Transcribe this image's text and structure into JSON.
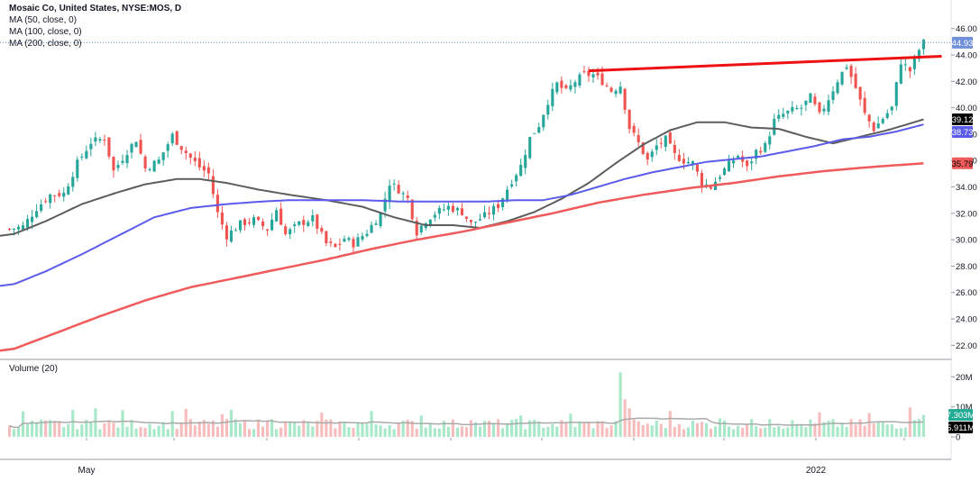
{
  "header": {
    "title": "Mosaic Co, United States, NYSE:MOS, D",
    "ma_labels": [
      "MA (50, close, 0)",
      "MA (100, close, 0)",
      "MA (200, close, 0)"
    ],
    "volume_label": "Volume (20)"
  },
  "colors": {
    "up": "#26a69a",
    "down": "#ef5350",
    "ma50": "#5d5d5d",
    "ma100": "#5b5bec",
    "ma200": "#f05a5a",
    "trendline": "#ee1111",
    "vol_up": "#a6e8c7",
    "vol_down": "#f7bcbc",
    "vol_ma": "#aaaaaa",
    "price_line": "#6f8fd8"
  },
  "chart_data": [
    {
      "type": "candlestick",
      "panel": "price",
      "symbol": "MOS",
      "exchange": "NYSE",
      "interval": "D",
      "ylim": [
        21.0,
        46.8
      ],
      "yticks": [
        "46.00",
        "44.00",
        "42.00",
        "40.00",
        "38.00",
        "36.00",
        "34.00",
        "32.00",
        "30.00",
        "28.00",
        "26.00",
        "24.00",
        "22.00"
      ],
      "x_labels": [
        "May",
        "2022"
      ],
      "last_price": "44.93",
      "badges": [
        {
          "series": "last_price",
          "value": "44.93"
        },
        {
          "series": "MA (50, close, 0)",
          "value": "39.12"
        },
        {
          "series": "MA (100, close, 0)",
          "value": "38.73"
        },
        {
          "series": "MA (200, close, 0)",
          "value": "35.79"
        }
      ],
      "close_path": [
        [
          0,
          30.8
        ],
        [
          3,
          31.0
        ],
        [
          6,
          32.4
        ],
        [
          9,
          33.4
        ],
        [
          12,
          33.5
        ],
        [
          15,
          35.8
        ],
        [
          18,
          37.4
        ],
        [
          21,
          37.7
        ],
        [
          23,
          35.2
        ],
        [
          26,
          36.7
        ],
        [
          28,
          37.6
        ],
        [
          30,
          35.4
        ],
        [
          33,
          36.0
        ],
        [
          36,
          37.9
        ],
        [
          38,
          37.0
        ],
        [
          40,
          36.2
        ],
        [
          42,
          35.5
        ],
        [
          44,
          35.0
        ],
        [
          46,
          32.0
        ],
        [
          48,
          30.3
        ],
        [
          51,
          31.2
        ],
        [
          54,
          31.5
        ],
        [
          57,
          30.8
        ],
        [
          59,
          32.3
        ],
        [
          61,
          30.4
        ],
        [
          64,
          31.2
        ],
        [
          67,
          31.6
        ],
        [
          70,
          29.7
        ],
        [
          72,
          29.4
        ],
        [
          74,
          30.1
        ],
        [
          76,
          29.7
        ],
        [
          79,
          30.6
        ],
        [
          82,
          32.0
        ],
        [
          84,
          34.3
        ],
        [
          86,
          33.8
        ],
        [
          88,
          33.1
        ],
        [
          90,
          30.6
        ],
        [
          92,
          31.5
        ],
        [
          94,
          32.0
        ],
        [
          97,
          32.5
        ],
        [
          100,
          32.1
        ],
        [
          102,
          31.2
        ],
        [
          105,
          31.8
        ],
        [
          108,
          32.6
        ],
        [
          111,
          34.5
        ],
        [
          113,
          35.6
        ],
        [
          115,
          37.7
        ],
        [
          117,
          38.7
        ],
        [
          119,
          40.5
        ],
        [
          121,
          41.8
        ],
        [
          123,
          41.2
        ],
        [
          125,
          42.0
        ],
        [
          127,
          42.5
        ],
        [
          129,
          42.5
        ],
        [
          131,
          42.0
        ],
        [
          133,
          41.3
        ],
        [
          135,
          41.7
        ],
        [
          137,
          38.5
        ],
        [
          139,
          37.3
        ],
        [
          141,
          36.0
        ],
        [
          143,
          37.1
        ],
        [
          145,
          37.6
        ],
        [
          147,
          36.4
        ],
        [
          149,
          36.0
        ],
        [
          151,
          35.8
        ],
        [
          153,
          34.3
        ],
        [
          155,
          34.0
        ],
        [
          157,
          34.9
        ],
        [
          159,
          35.7
        ],
        [
          161,
          36.4
        ],
        [
          163,
          35.4
        ],
        [
          165,
          36.7
        ],
        [
          167,
          37.1
        ],
        [
          169,
          39.0
        ],
        [
          171,
          39.5
        ],
        [
          173,
          39.8
        ],
        [
          175,
          40.0
        ],
        [
          177,
          40.8
        ],
        [
          179,
          39.4
        ],
        [
          181,
          40.7
        ],
        [
          183,
          42.1
        ],
        [
          185,
          43.2
        ],
        [
          187,
          41.5
        ],
        [
          189,
          39.5
        ],
        [
          191,
          38.4
        ],
        [
          193,
          39.2
        ],
        [
          195,
          40.0
        ],
        [
          197,
          43.5
        ],
        [
          199,
          42.8
        ],
        [
          201,
          44.4
        ],
        [
          202,
          44.93
        ]
      ],
      "overlays": [
        {
          "name": "MA (50, close, 0)",
          "path": [
            [
              0,
              30.3
            ],
            [
              8,
              31.4
            ],
            [
              16,
              32.7
            ],
            [
              24,
              33.6
            ],
            [
              30,
              34.2
            ],
            [
              37,
              34.6
            ],
            [
              42,
              34.6
            ],
            [
              48,
              34.3
            ],
            [
              55,
              33.8
            ],
            [
              62,
              33.4
            ],
            [
              70,
              33.0
            ],
            [
              78,
              32.5
            ],
            [
              85,
              31.7
            ],
            [
              92,
              31.1
            ],
            [
              98,
              31.1
            ],
            [
              104,
              30.9
            ],
            [
              110,
              31.4
            ],
            [
              116,
              32.1
            ],
            [
              122,
              33.1
            ],
            [
              128,
              34.3
            ],
            [
              134,
              35.8
            ],
            [
              140,
              37.2
            ],
            [
              146,
              38.3
            ],
            [
              152,
              38.9
            ],
            [
              158,
              38.9
            ],
            [
              164,
              38.5
            ],
            [
              170,
              38.4
            ],
            [
              176,
              37.8
            ],
            [
              182,
              37.3
            ],
            [
              188,
              37.8
            ],
            [
              194,
              38.3
            ],
            [
              198,
              38.7
            ],
            [
              202,
              39.12
            ]
          ]
        },
        {
          "name": "MA (100, close, 0)",
          "path": [
            [
              0,
              26.5
            ],
            [
              8,
              27.6
            ],
            [
              16,
              28.9
            ],
            [
              24,
              30.3
            ],
            [
              32,
              31.7
            ],
            [
              40,
              32.4
            ],
            [
              48,
              32.7
            ],
            [
              56,
              32.9
            ],
            [
              62,
              33.0
            ],
            [
              70,
              33.0
            ],
            [
              78,
              33.0
            ],
            [
              86,
              32.9
            ],
            [
              94,
              32.9
            ],
            [
              100,
              32.9
            ],
            [
              106,
              32.9
            ],
            [
              112,
              33.0
            ],
            [
              118,
              33.0
            ],
            [
              124,
              33.4
            ],
            [
              130,
              34.0
            ],
            [
              136,
              34.6
            ],
            [
              142,
              35.1
            ],
            [
              148,
              35.5
            ],
            [
              154,
              35.9
            ],
            [
              160,
              36.1
            ],
            [
              166,
              36.3
            ],
            [
              172,
              36.7
            ],
            [
              178,
              37.1
            ],
            [
              184,
              37.6
            ],
            [
              190,
              37.8
            ],
            [
              196,
              38.2
            ],
            [
              202,
              38.73
            ]
          ]
        },
        {
          "name": "MA (200, close, 0)",
          "path": [
            [
              0,
              21.6
            ],
            [
              10,
              22.9
            ],
            [
              20,
              24.2
            ],
            [
              30,
              25.4
            ],
            [
              40,
              26.4
            ],
            [
              50,
              27.1
            ],
            [
              60,
              27.8
            ],
            [
              70,
              28.5
            ],
            [
              80,
              29.3
            ],
            [
              90,
              30.0
            ],
            [
              100,
              30.6
            ],
            [
              110,
              31.3
            ],
            [
              120,
              32.0
            ],
            [
              130,
              32.8
            ],
            [
              140,
              33.4
            ],
            [
              150,
              33.9
            ],
            [
              160,
              34.3
            ],
            [
              170,
              34.8
            ],
            [
              180,
              35.2
            ],
            [
              190,
              35.5
            ],
            [
              202,
              35.79
            ]
          ]
        },
        {
          "name": "trendline",
          "path": [
            [
              128,
              42.8
            ],
            [
              206,
              43.9
            ]
          ]
        }
      ]
    },
    {
      "type": "bar",
      "panel": "volume",
      "ylim": [
        0,
        24000000
      ],
      "yticks": [
        "20M",
        "10M",
        "0"
      ],
      "badges": [
        {
          "series": "volume",
          "value": "7.303M"
        },
        {
          "series": "Volume MA (20)",
          "value": "5.911M"
        }
      ]
    }
  ]
}
